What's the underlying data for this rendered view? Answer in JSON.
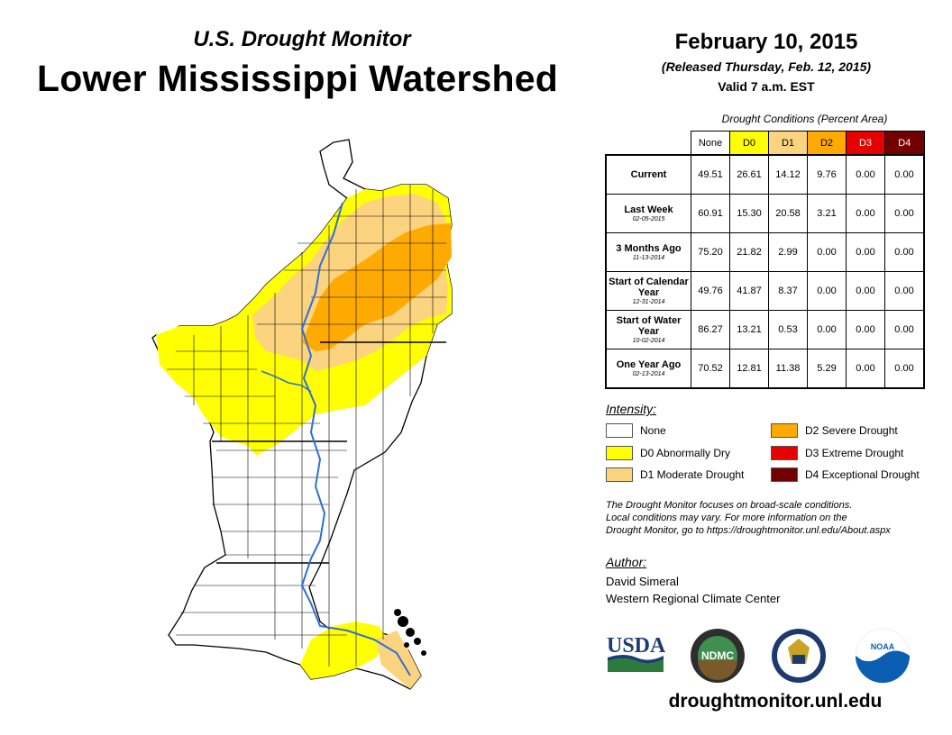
{
  "header": {
    "subtitle": "U.S. Drought Monitor",
    "title": "Lower Mississippi Watershed",
    "date": "February 10, 2015",
    "released": "(Released Thursday, Feb. 12, 2015)",
    "valid": "Valid 7 a.m. EST"
  },
  "table": {
    "caption": "Drought Conditions (Percent Area)",
    "columns": [
      "None",
      "D0",
      "D1",
      "D2",
      "D3",
      "D4"
    ],
    "rows": [
      {
        "label": "Current",
        "date": "",
        "values": [
          "49.51",
          "26.61",
          "14.12",
          "9.76",
          "0.00",
          "0.00"
        ]
      },
      {
        "label": "Last Week",
        "date": "02-05-2015",
        "values": [
          "60.91",
          "15.30",
          "20.58",
          "3.21",
          "0.00",
          "0.00"
        ]
      },
      {
        "label": "3 Months Ago",
        "date": "11-13-2014",
        "values": [
          "75.20",
          "21.82",
          "2.99",
          "0.00",
          "0.00",
          "0.00"
        ]
      },
      {
        "label": "Start of Calendar Year",
        "date": "12-31-2014",
        "values": [
          "49.76",
          "41.87",
          "8.37",
          "0.00",
          "0.00",
          "0.00"
        ]
      },
      {
        "label": "Start of Water Year",
        "date": "10-02-2014",
        "values": [
          "86.27",
          "13.21",
          "0.53",
          "0.00",
          "0.00",
          "0.00"
        ]
      },
      {
        "label": "One Year Ago",
        "date": "02-13-2014",
        "values": [
          "70.52",
          "12.81",
          "11.38",
          "5.29",
          "0.00",
          "0.00"
        ]
      }
    ]
  },
  "legend": {
    "title": "Intensity:",
    "items": [
      {
        "label": "None",
        "color": "#ffffff"
      },
      {
        "label": "D0 Abnormally Dry",
        "color": "#ffff00"
      },
      {
        "label": "D1 Moderate Drought",
        "color": "#fcd37f"
      },
      {
        "label": "D2 Severe Drought",
        "color": "#ffaa00"
      },
      {
        "label": "D3 Extreme Drought",
        "color": "#e60000"
      },
      {
        "label": "D4 Exceptional Drought",
        "color": "#730000"
      }
    ]
  },
  "note": {
    "line1": "The Drought Monitor focuses on broad-scale conditions.",
    "line2": "Local conditions may vary. For more information on the",
    "line3": "Drought Monitor, go to https://droughtmonitor.unl.edu/About.aspx"
  },
  "author": {
    "title": "Author:",
    "name": "David Simeral",
    "org": "Western Regional Climate Center"
  },
  "logos": {
    "usda": "USDA",
    "ndmc": "NDMC",
    "noaa": "NOAA"
  },
  "url": "droughtmonitor.unl.edu"
}
